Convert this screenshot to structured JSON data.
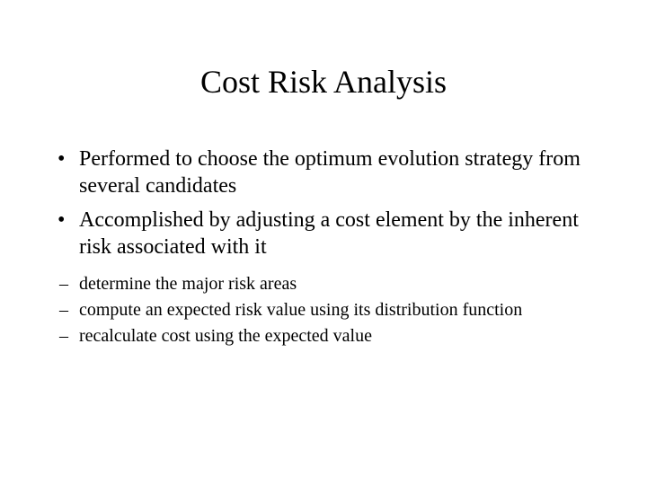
{
  "slide": {
    "title": "Cost Risk Analysis",
    "title_fontsize": 36,
    "body_fontsize": 24,
    "sub_fontsize": 20,
    "background_color": "#ffffff",
    "text_color": "#000000",
    "font_family": "Times New Roman",
    "bullets": [
      "Performed to choose the optimum evolution strategy from several candidates",
      "Accomplished by adjusting a cost element by the inherent risk associated with it"
    ],
    "sub_bullets": [
      "determine the major risk areas",
      "compute an expected risk value using its distribution function",
      "recalculate cost using the expected value"
    ]
  }
}
